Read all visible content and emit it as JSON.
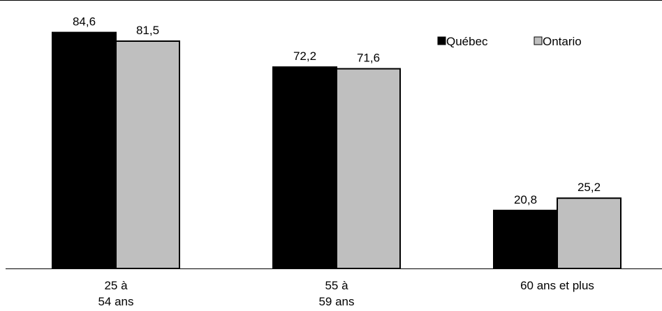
{
  "chart_data": {
    "type": "bar",
    "categories": [
      [
        "25 à",
        "54 ans"
      ],
      [
        "55 à",
        "59 ans"
      ],
      [
        "60 ans et plus"
      ]
    ],
    "series": [
      {
        "name": "Québec",
        "values": [
          84.6,
          72.2,
          20.8
        ],
        "labels": [
          "84,6",
          "72,2",
          "20,8"
        ],
        "color": "#000000"
      },
      {
        "name": "Ontario",
        "values": [
          81.5,
          71.6,
          25.2
        ],
        "labels": [
          "81,5",
          "71,6",
          "25,2"
        ],
        "color": "#bfbfbf"
      }
    ],
    "ylim": [
      0,
      90
    ],
    "grid": false,
    "legend": "top-right",
    "title": "",
    "xlabel": "",
    "ylabel": ""
  }
}
